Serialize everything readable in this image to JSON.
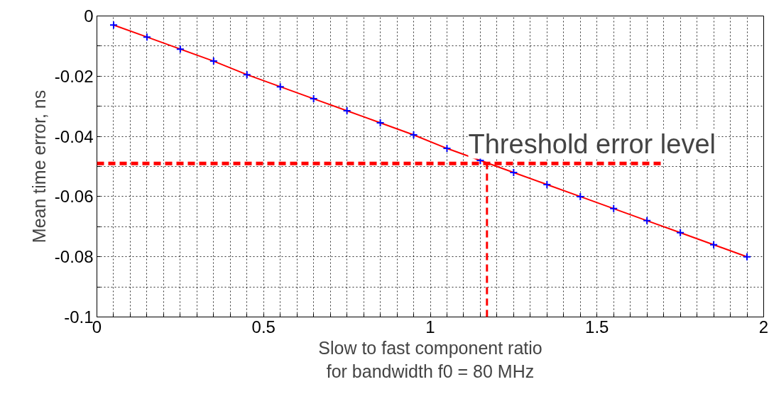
{
  "chart_data": {
    "type": "line",
    "xlabel": "Slow to fast component ratio\nfor bandwidth f0 = 80 MHz",
    "ylabel": "Mean time error, ns",
    "x": [
      0.05,
      0.15,
      0.25,
      0.35,
      0.45,
      0.55,
      0.65,
      0.75,
      0.85,
      0.95,
      1.05,
      1.15,
      1.25,
      1.35,
      1.45,
      1.55,
      1.65,
      1.75,
      1.85,
      1.95
    ],
    "series": [
      {
        "color": "#ff0000",
        "marker": "none",
        "line_style": "solid",
        "values": [
          -0.003,
          -0.007,
          -0.011,
          -0.015,
          -0.0195,
          -0.0235,
          -0.0275,
          -0.0315,
          -0.0355,
          -0.0395,
          -0.044,
          -0.048,
          -0.052,
          -0.056,
          -0.06,
          -0.064,
          -0.068,
          -0.072,
          -0.076,
          -0.08
        ]
      },
      {
        "type": "scatter",
        "color": "#0000ff",
        "marker": "cross",
        "values": [
          -0.003,
          -0.007,
          -0.011,
          -0.015,
          -0.0195,
          -0.0235,
          -0.0275,
          -0.0315,
          -0.0355,
          -0.0395,
          -0.044,
          -0.048,
          -0.052,
          -0.056,
          -0.06,
          -0.064,
          -0.068,
          -0.072,
          -0.076,
          -0.08
        ]
      },
      {
        "type": "line",
        "color": "#ff0000",
        "marker": "none",
        "line_style": "dashed",
        "x": [
          0,
          1.7
        ],
        "values": [
          -0.049,
          -0.049
        ]
      },
      {
        "type": "line",
        "color": "#ff0000",
        "marker": "none",
        "line_style": "dashed",
        "x": [
          1.17,
          1.17
        ],
        "values": [
          -0.1,
          -0.049
        ]
      }
    ],
    "annotations": [
      "Threshold error level"
    ],
    "xlim": [
      0,
      2
    ],
    "ylim": [
      -0.1,
      0
    ],
    "xticks": [
      0,
      {
        "value": 0.05,
        "label": null
      },
      {
        "value": 0.1,
        "label": null
      },
      {
        "value": 0.15,
        "label": null
      },
      {
        "value": 0.2,
        "label": null
      },
      {
        "value": 0.25,
        "label": null
      },
      {
        "value": 0.3,
        "label": null
      },
      {
        "value": 0.35,
        "label": null
      },
      {
        "value": 0.4,
        "label": null
      },
      {
        "value": 0.45,
        "label": null
      },
      0.5,
      {
        "value": 0.55,
        "label": null
      },
      {
        "value": 0.6,
        "label": null
      },
      {
        "value": 0.65,
        "label": null
      },
      {
        "value": 0.7,
        "label": null
      },
      {
        "value": 0.75,
        "label": null
      },
      {
        "value": 0.8,
        "label": null
      },
      {
        "value": 0.85,
        "label": null
      },
      {
        "value": 0.9,
        "label": null
      },
      {
        "value": 0.95,
        "label": null
      },
      1,
      {
        "value": 1.05,
        "label": null
      },
      {
        "value": 1.1,
        "label": null
      },
      {
        "value": 1.15,
        "label": null
      },
      {
        "value": 1.2,
        "label": null
      },
      {
        "value": 1.25,
        "label": null
      },
      {
        "value": 1.3,
        "label": null
      },
      {
        "value": 1.35,
        "label": null
      },
      {
        "value": 1.4,
        "label": null
      },
      {
        "value": 1.45,
        "label": null
      },
      1.5,
      {
        "value": 1.55,
        "label": null
      },
      {
        "value": 1.6,
        "label": null
      },
      {
        "value": 1.65,
        "label": null
      },
      {
        "value": 1.7,
        "label": null
      },
      {
        "value": 1.75,
        "label": null
      },
      {
        "value": 1.8,
        "label": null
      },
      {
        "value": 1.85,
        "label": null
      },
      {
        "value": 1.9,
        "label": null
      },
      {
        "value": 1.95,
        "label": null
      },
      2
    ],
    "yticks": [
      -0.1,
      {
        "value": -0.09,
        "label": null
      },
      -0.08,
      {
        "value": -0.07,
        "label": null
      },
      -0.06,
      {
        "value": -0.05,
        "label": null
      },
      -0.04,
      {
        "value": -0.03,
        "label": null
      },
      -0.02,
      {
        "value": -0.01,
        "label": null
      },
      0
    ],
    "grid": true
  }
}
